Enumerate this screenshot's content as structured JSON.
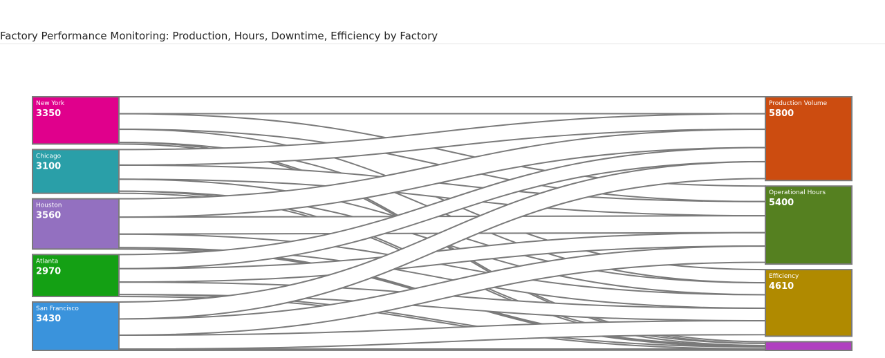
{
  "title": "Factory Performance Monitoring: Production, Hours, Downtime, Efficiency by Factory",
  "chart_data": {
    "type": "sankey",
    "sources": [
      {
        "name": "New York",
        "value": 3350,
        "color": "#e0008c"
      },
      {
        "name": "Chicago",
        "value": 3100,
        "color": "#2a9fa8"
      },
      {
        "name": "Houston",
        "value": 3560,
        "color": "#9370c0"
      },
      {
        "name": "Atlanta",
        "value": 2970,
        "color": "#14a014"
      },
      {
        "name": "San Francisco",
        "value": 3430,
        "color": "#3a93dc"
      }
    ],
    "targets": [
      {
        "name": "Production Volume",
        "value": 5800,
        "color": "#cc4c10"
      },
      {
        "name": "Operational Hours",
        "value": 5400,
        "color": "#558020"
      },
      {
        "name": "Efficiency",
        "value": 4610,
        "color": "#b08a00"
      },
      {
        "name": "",
        "value": 600,
        "color": "#b040c0"
      }
    ],
    "links": [
      {
        "source": "New York",
        "target": "Production Volume",
        "value": 1200
      },
      {
        "source": "New York",
        "target": "Operational Hours",
        "value": 1100
      },
      {
        "source": "New York",
        "target": "Efficiency",
        "value": 930
      },
      {
        "source": "New York",
        "target": 3,
        "value": 120
      },
      {
        "source": "Chicago",
        "target": "Production Volume",
        "value": 1100
      },
      {
        "source": "Chicago",
        "target": "Operational Hours",
        "value": 1000
      },
      {
        "source": "Chicago",
        "target": "Efficiency",
        "value": 850
      },
      {
        "source": "Chicago",
        "target": 3,
        "value": 150
      },
      {
        "source": "Houston",
        "target": "Production Volume",
        "value": 1300
      },
      {
        "source": "Houston",
        "target": "Operational Hours",
        "value": 1200
      },
      {
        "source": "Houston",
        "target": "Efficiency",
        "value": 960
      },
      {
        "source": "Houston",
        "target": 3,
        "value": 100
      },
      {
        "source": "Atlanta",
        "target": "Production Volume",
        "value": 1000
      },
      {
        "source": "Atlanta",
        "target": "Operational Hours",
        "value": 950
      },
      {
        "source": "Atlanta",
        "target": "Efficiency",
        "value": 880
      },
      {
        "source": "Atlanta",
        "target": 3,
        "value": 140
      },
      {
        "source": "San Francisco",
        "target": "Production Volume",
        "value": 1200
      },
      {
        "source": "San Francisco",
        "target": "Operational Hours",
        "value": 1150
      },
      {
        "source": "San Francisco",
        "target": "Efficiency",
        "value": 990
      },
      {
        "source": "San Francisco",
        "target": 3,
        "value": 90
      }
    ]
  }
}
